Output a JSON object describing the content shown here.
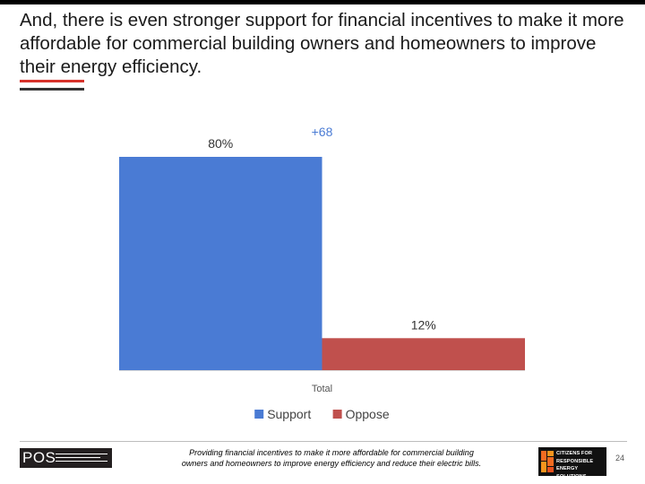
{
  "slide": {
    "title": "And, there is even stronger support for financial incentives to make it more affordable for commercial building owners and homeowners to improve their energy efficiency.",
    "footnote_line1": "Providing financial incentives to make it more affordable for commercial building",
    "footnote_line2": "owners and homeowners to improve energy efficiency and reduce their electric bills.",
    "page_number": "24",
    "pos_logo_text": "POS",
    "org_logo_text": [
      "CITIZENS FOR",
      "RESPONSIBLE",
      "ENERGY SOLUTIONS"
    ]
  },
  "colors": {
    "support": "#4a7bd4",
    "oppose": "#c0504d",
    "net_label": "#4a7bd4",
    "accent_red": "#d6322b",
    "org_orange": "#f26b21"
  },
  "chart_data": {
    "type": "bar",
    "categories": [
      "Total"
    ],
    "series": [
      {
        "name": "Support",
        "values": [
          80
        ],
        "labels": [
          "80%"
        ]
      },
      {
        "name": "Oppose",
        "values": [
          12
        ],
        "labels": [
          "12%"
        ]
      }
    ],
    "ylim": [
      0,
      80
    ],
    "annotations": [
      {
        "text": "+68"
      }
    ],
    "legend": "bottom-center",
    "grid": false
  }
}
